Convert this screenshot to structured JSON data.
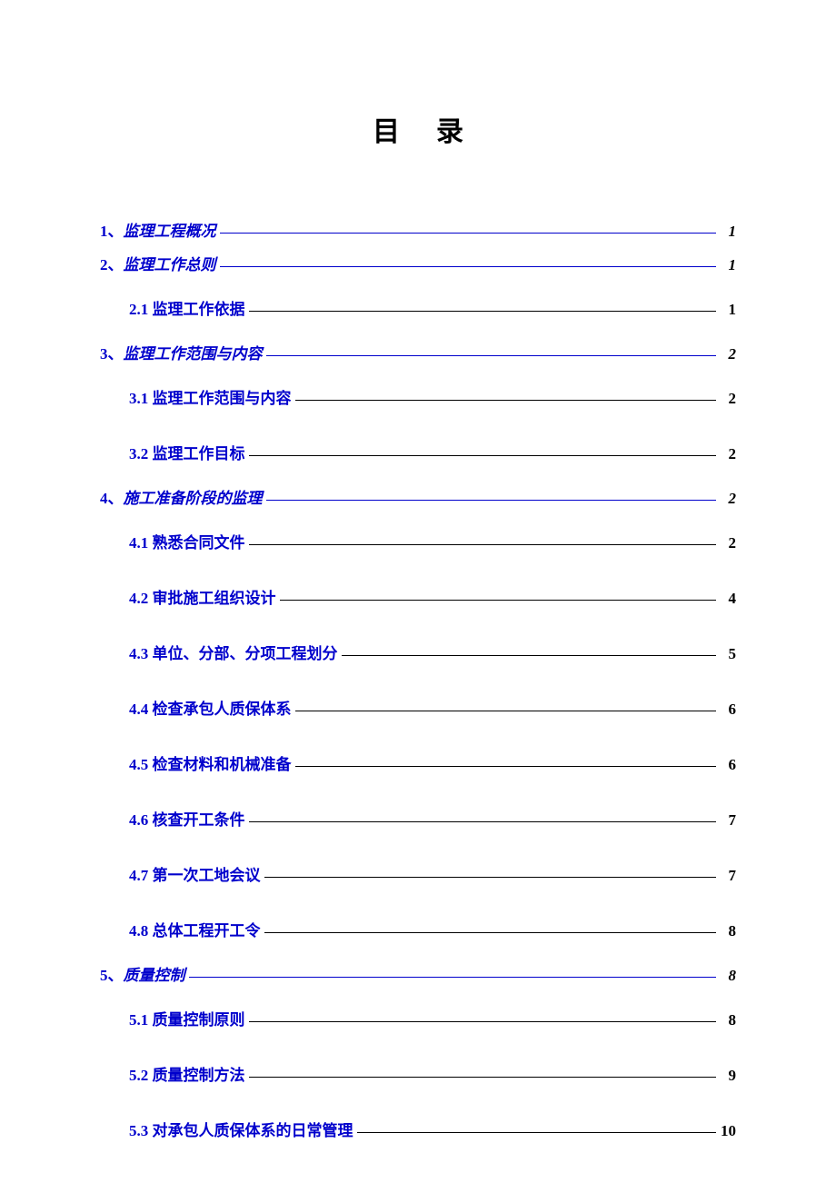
{
  "title": "目录",
  "link_color": "#0000cc",
  "text_color": "#000000",
  "background_color": "#ffffff",
  "toc": [
    {
      "level": 1,
      "num": "1、",
      "text": "监理工程概况",
      "page": "1"
    },
    {
      "level": 1,
      "num": "2、",
      "text": "监理工作总则",
      "page": "1"
    },
    {
      "level": 2,
      "num": "2.1 ",
      "text": "监理工作依据",
      "page": "1"
    },
    {
      "level": 1,
      "num": "3、",
      "text": "监理工作范围与内容",
      "page": "2"
    },
    {
      "level": 2,
      "num": "3.1 ",
      "text": "监理工作范围与内容",
      "page": "2"
    },
    {
      "level": 2,
      "num": "3.2 ",
      "text": "监理工作目标",
      "page": "2"
    },
    {
      "level": 1,
      "num": "4、",
      "text": "施工准备阶段的监理",
      "page": "2"
    },
    {
      "level": 2,
      "num": "4.1 ",
      "text": "熟悉合同文件",
      "page": "2"
    },
    {
      "level": 2,
      "num": "4.2 ",
      "text": "审批施工组织设计",
      "page": "4"
    },
    {
      "level": 2,
      "num": "4.3 ",
      "text": "单位、分部、分项工程划分",
      "page": "5"
    },
    {
      "level": 2,
      "num": "4.4 ",
      "text": "检查承包人质保体系",
      "page": "6"
    },
    {
      "level": 2,
      "num": "4.5 ",
      "text": "检查材料和机械准备",
      "page": "6"
    },
    {
      "level": 2,
      "num": "4.6 ",
      "text": "核查开工条件",
      "page": "7"
    },
    {
      "level": 2,
      "num": "4.7 ",
      "text": "第一次工地会议",
      "page": "7"
    },
    {
      "level": 2,
      "num": "4.8 ",
      "text": "总体工程开工令",
      "page": "8"
    },
    {
      "level": 1,
      "num": "5、",
      "text": "质量控制",
      "page": "8"
    },
    {
      "level": 2,
      "num": "5.1 ",
      "text": "质量控制原则",
      "page": "8"
    },
    {
      "level": 2,
      "num": "5.2 ",
      "text": "质量控制方法",
      "page": "9"
    },
    {
      "level": 2,
      "num": "5.3 ",
      "text": "对承包人质保体系的日常管理",
      "page": "10"
    }
  ]
}
